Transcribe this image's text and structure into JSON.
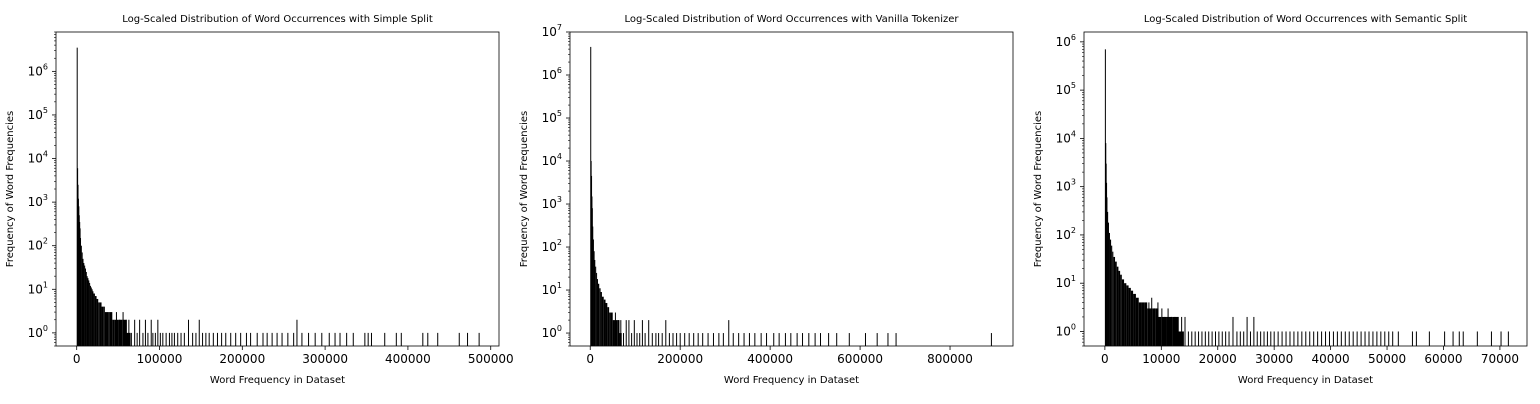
{
  "chart_data": [
    {
      "type": "histogram",
      "title": "Log-Scaled Distribution of Word Occurrences with Simple Split",
      "xlabel": "Word Frequency in Dataset",
      "ylabel": "Frequency of Word Frequencies",
      "xscale": "linear",
      "yscale": "log",
      "xlim": [
        -25000,
        510000
      ],
      "ylim": [
        0.5,
        8000000
      ],
      "x_ticks": [
        0,
        100000,
        200000,
        300000,
        400000,
        500000
      ],
      "x_tick_labels": [
        "0",
        "100000",
        "200000",
        "300000",
        "400000",
        "500000"
      ],
      "y_tick_exponents": [
        0,
        1,
        2,
        3,
        4,
        5,
        6
      ],
      "bar_color": "#000000",
      "head_bins": [
        [
          500,
          3500000
        ],
        [
          1000,
          6000
        ],
        [
          1500,
          2500
        ],
        [
          2000,
          1200
        ],
        [
          2500,
          800
        ],
        [
          3000,
          500
        ],
        [
          3500,
          350
        ],
        [
          4000,
          250
        ],
        [
          5000,
          150
        ],
        [
          6000,
          100
        ],
        [
          7000,
          70
        ],
        [
          8000,
          50
        ],
        [
          9000,
          40
        ],
        [
          10000,
          35
        ],
        [
          11000,
          30
        ],
        [
          12000,
          25
        ],
        [
          13000,
          20
        ],
        [
          14000,
          18
        ],
        [
          15000,
          16
        ],
        [
          16000,
          14
        ],
        [
          17000,
          12
        ],
        [
          18000,
          11
        ],
        [
          19000,
          10
        ],
        [
          20000,
          9
        ],
        [
          22000,
          8
        ],
        [
          24000,
          7
        ],
        [
          26000,
          6
        ],
        [
          28000,
          5
        ],
        [
          30000,
          5
        ],
        [
          32000,
          4
        ],
        [
          34000,
          4
        ],
        [
          36000,
          3
        ],
        [
          38000,
          3
        ],
        [
          40000,
          3
        ],
        [
          43000,
          3
        ],
        [
          46000,
          2
        ],
        [
          50000,
          2
        ],
        [
          55000,
          2
        ],
        [
          60000,
          2
        ],
        [
          65000,
          1
        ]
      ],
      "tail_points": [
        [
          48000,
          3
        ],
        [
          52000,
          2
        ],
        [
          56000,
          3
        ],
        [
          60000,
          2
        ],
        [
          63000,
          2
        ],
        [
          66000,
          1
        ],
        [
          70000,
          2
        ],
        [
          73000,
          1
        ],
        [
          76000,
          2
        ],
        [
          80000,
          1
        ],
        [
          83000,
          2
        ],
        [
          86000,
          1
        ],
        [
          90000,
          2
        ],
        [
          92000,
          1
        ],
        [
          95000,
          1
        ],
        [
          98000,
          2
        ],
        [
          101000,
          1
        ],
        [
          104000,
          1
        ],
        [
          108000,
          1
        ],
        [
          112000,
          1
        ],
        [
          115000,
          1
        ],
        [
          118000,
          1
        ],
        [
          122000,
          1
        ],
        [
          126000,
          1
        ],
        [
          130000,
          1
        ],
        [
          135000,
          2
        ],
        [
          140000,
          1
        ],
        [
          144000,
          1
        ],
        [
          148000,
          2
        ],
        [
          152000,
          1
        ],
        [
          156000,
          1
        ],
        [
          160000,
          1
        ],
        [
          165000,
          1
        ],
        [
          170000,
          1
        ],
        [
          175000,
          1
        ],
        [
          180000,
          1
        ],
        [
          186000,
          1
        ],
        [
          192000,
          1
        ],
        [
          198000,
          1
        ],
        [
          205000,
          1
        ],
        [
          210000,
          1
        ],
        [
          218000,
          1
        ],
        [
          225000,
          1
        ],
        [
          230000,
          1
        ],
        [
          236000,
          1
        ],
        [
          242000,
          1
        ],
        [
          248000,
          1
        ],
        [
          255000,
          1
        ],
        [
          262000,
          1
        ],
        [
          266000,
          2
        ],
        [
          272000,
          1
        ],
        [
          280000,
          1
        ],
        [
          288000,
          1
        ],
        [
          296000,
          1
        ],
        [
          305000,
          1
        ],
        [
          312000,
          1
        ],
        [
          318000,
          1
        ],
        [
          326000,
          1
        ],
        [
          334000,
          1
        ],
        [
          348000,
          1
        ],
        [
          352000,
          1
        ],
        [
          356000,
          1
        ],
        [
          372000,
          1
        ],
        [
          386000,
          1
        ],
        [
          392000,
          1
        ],
        [
          418000,
          1
        ],
        [
          424000,
          1
        ],
        [
          436000,
          1
        ],
        [
          462000,
          1
        ],
        [
          472000,
          1
        ],
        [
          486000,
          1
        ]
      ]
    },
    {
      "type": "histogram",
      "title": "Log-Scaled Distribution of Word Occurrences with Vanilla Tokenizer",
      "xlabel": "Word Frequency in Dataset",
      "ylabel": "Frequency of Word Frequencies",
      "xscale": "linear",
      "yscale": "log",
      "xlim": [
        -45000,
        940000
      ],
      "ylim": [
        0.5,
        10000000
      ],
      "x_ticks": [
        0,
        200000,
        400000,
        600000,
        800000
      ],
      "x_tick_labels": [
        "0",
        "200000",
        "400000",
        "600000",
        "800000"
      ],
      "y_tick_exponents": [
        0,
        1,
        2,
        3,
        4,
        5,
        6,
        7
      ],
      "bar_color": "#000000",
      "head_bins": [
        [
          900,
          4500000
        ],
        [
          1800,
          10000
        ],
        [
          2700,
          4500
        ],
        [
          3600,
          1500
        ],
        [
          4500,
          800
        ],
        [
          6000,
          300
        ],
        [
          7500,
          150
        ],
        [
          9000,
          80
        ],
        [
          11000,
          50
        ],
        [
          13000,
          35
        ],
        [
          15000,
          25
        ],
        [
          17000,
          18
        ],
        [
          20000,
          14
        ],
        [
          23000,
          11
        ],
        [
          26000,
          9
        ],
        [
          30000,
          7
        ],
        [
          34000,
          6
        ],
        [
          38000,
          5
        ],
        [
          42000,
          4
        ],
        [
          46000,
          3
        ],
        [
          50000,
          3
        ],
        [
          55000,
          2
        ],
        [
          60000,
          2
        ],
        [
          65000,
          2
        ],
        [
          70000,
          1
        ]
      ],
      "tail_points": [
        [
          56000,
          3
        ],
        [
          62000,
          2
        ],
        [
          68000,
          2
        ],
        [
          74000,
          1
        ],
        [
          80000,
          2
        ],
        [
          86000,
          2
        ],
        [
          92000,
          1
        ],
        [
          98000,
          2
        ],
        [
          104000,
          1
        ],
        [
          110000,
          1
        ],
        [
          116000,
          2
        ],
        [
          122000,
          1
        ],
        [
          130000,
          2
        ],
        [
          138000,
          1
        ],
        [
          146000,
          1
        ],
        [
          152000,
          1
        ],
        [
          160000,
          1
        ],
        [
          168000,
          2
        ],
        [
          176000,
          1
        ],
        [
          184000,
          1
        ],
        [
          192000,
          1
        ],
        [
          200000,
          1
        ],
        [
          210000,
          1
        ],
        [
          220000,
          1
        ],
        [
          230000,
          1
        ],
        [
          240000,
          1
        ],
        [
          250000,
          1
        ],
        [
          262000,
          1
        ],
        [
          274000,
          1
        ],
        [
          286000,
          1
        ],
        [
          296000,
          1
        ],
        [
          308000,
          2
        ],
        [
          318000,
          1
        ],
        [
          330000,
          1
        ],
        [
          342000,
          1
        ],
        [
          354000,
          1
        ],
        [
          366000,
          1
        ],
        [
          380000,
          1
        ],
        [
          392000,
          1
        ],
        [
          408000,
          1
        ],
        [
          420000,
          1
        ],
        [
          434000,
          1
        ],
        [
          446000,
          1
        ],
        [
          460000,
          1
        ],
        [
          472000,
          1
        ],
        [
          486000,
          1
        ],
        [
          500000,
          1
        ],
        [
          512000,
          1
        ],
        [
          530000,
          1
        ],
        [
          548000,
          1
        ],
        [
          576000,
          1
        ],
        [
          612000,
          1
        ],
        [
          638000,
          1
        ],
        [
          662000,
          1
        ],
        [
          680000,
          1
        ],
        [
          892000,
          1
        ]
      ]
    },
    {
      "type": "histogram",
      "title": "Log-Scaled Distribution of Word Occurrences with Semantic Split",
      "xlabel": "Word Frequency in Dataset",
      "ylabel": "Frequency of Word Frequencies",
      "xscale": "linear",
      "yscale": "log",
      "xlim": [
        -3700,
        74800
      ],
      "ylim": [
        0.5,
        1600000
      ],
      "x_ticks": [
        0,
        10000,
        20000,
        30000,
        40000,
        50000,
        60000,
        70000
      ],
      "x_tick_labels": [
        "0",
        "10000",
        "20000",
        "30000",
        "40000",
        "50000",
        "60000",
        "70000"
      ],
      "y_tick_exponents": [
        0,
        1,
        2,
        3,
        4,
        5,
        6
      ],
      "bar_color": "#000000",
      "head_bins": [
        [
          70,
          700000
        ],
        [
          140,
          8000
        ],
        [
          210,
          3000
        ],
        [
          280,
          1200
        ],
        [
          400,
          600
        ],
        [
          550,
          300
        ],
        [
          700,
          180
        ],
        [
          900,
          110
        ],
        [
          1100,
          80
        ],
        [
          1300,
          60
        ],
        [
          1500,
          45
        ],
        [
          1800,
          35
        ],
        [
          2100,
          28
        ],
        [
          2400,
          22
        ],
        [
          2700,
          18
        ],
        [
          3000,
          15
        ],
        [
          3400,
          12
        ],
        [
          3800,
          10
        ],
        [
          4200,
          9
        ],
        [
          4600,
          8
        ],
        [
          5000,
          7
        ],
        [
          5500,
          6
        ],
        [
          6000,
          5
        ],
        [
          6500,
          4
        ],
        [
          7000,
          4
        ],
        [
          7500,
          4
        ],
        [
          8000,
          3
        ],
        [
          8500,
          3
        ],
        [
          9000,
          3
        ],
        [
          9500,
          3
        ],
        [
          10000,
          2
        ],
        [
          11000,
          2
        ],
        [
          12000,
          2
        ],
        [
          13000,
          2
        ],
        [
          14000,
          1
        ]
      ],
      "tail_points": [
        [
          7800,
          4
        ],
        [
          8300,
          5
        ],
        [
          8800,
          3
        ],
        [
          9400,
          4
        ],
        [
          10100,
          3
        ],
        [
          10600,
          2
        ],
        [
          11200,
          3
        ],
        [
          11800,
          2
        ],
        [
          12400,
          2
        ],
        [
          13000,
          2
        ],
        [
          13600,
          2
        ],
        [
          14200,
          2
        ],
        [
          14800,
          1
        ],
        [
          15400,
          1
        ],
        [
          16000,
          1
        ],
        [
          16600,
          1
        ],
        [
          17200,
          1
        ],
        [
          17800,
          1
        ],
        [
          18400,
          1
        ],
        [
          19000,
          1
        ],
        [
          19600,
          1
        ],
        [
          20200,
          1
        ],
        [
          20800,
          1
        ],
        [
          21400,
          1
        ],
        [
          22000,
          1
        ],
        [
          22700,
          2
        ],
        [
          23400,
          1
        ],
        [
          24000,
          1
        ],
        [
          24600,
          1
        ],
        [
          25200,
          2
        ],
        [
          25800,
          1
        ],
        [
          26400,
          2
        ],
        [
          27000,
          1
        ],
        [
          27600,
          1
        ],
        [
          28200,
          1
        ],
        [
          28800,
          1
        ],
        [
          29400,
          1
        ],
        [
          30000,
          1
        ],
        [
          30700,
          1
        ],
        [
          31400,
          1
        ],
        [
          32100,
          1
        ],
        [
          32800,
          1
        ],
        [
          33500,
          1
        ],
        [
          34200,
          1
        ],
        [
          34900,
          1
        ],
        [
          35600,
          1
        ],
        [
          36300,
          1
        ],
        [
          37000,
          1
        ],
        [
          37700,
          1
        ],
        [
          38400,
          1
        ],
        [
          39100,
          1
        ],
        [
          39800,
          1
        ],
        [
          40500,
          1
        ],
        [
          41200,
          1
        ],
        [
          41900,
          1
        ],
        [
          42600,
          1
        ],
        [
          43300,
          1
        ],
        [
          44000,
          1
        ],
        [
          44700,
          1
        ],
        [
          45400,
          1
        ],
        [
          46100,
          1
        ],
        [
          46800,
          1
        ],
        [
          47500,
          1
        ],
        [
          48200,
          1
        ],
        [
          48900,
          1
        ],
        [
          49600,
          1
        ],
        [
          50300,
          1
        ],
        [
          51000,
          1
        ],
        [
          52000,
          1
        ],
        [
          54500,
          1
        ],
        [
          55200,
          1
        ],
        [
          57500,
          1
        ],
        [
          60200,
          1
        ],
        [
          61700,
          1
        ],
        [
          62800,
          1
        ],
        [
          63500,
          1
        ],
        [
          66000,
          1
        ],
        [
          68500,
          1
        ],
        [
          70200,
          1
        ],
        [
          71500,
          1
        ]
      ]
    }
  ]
}
